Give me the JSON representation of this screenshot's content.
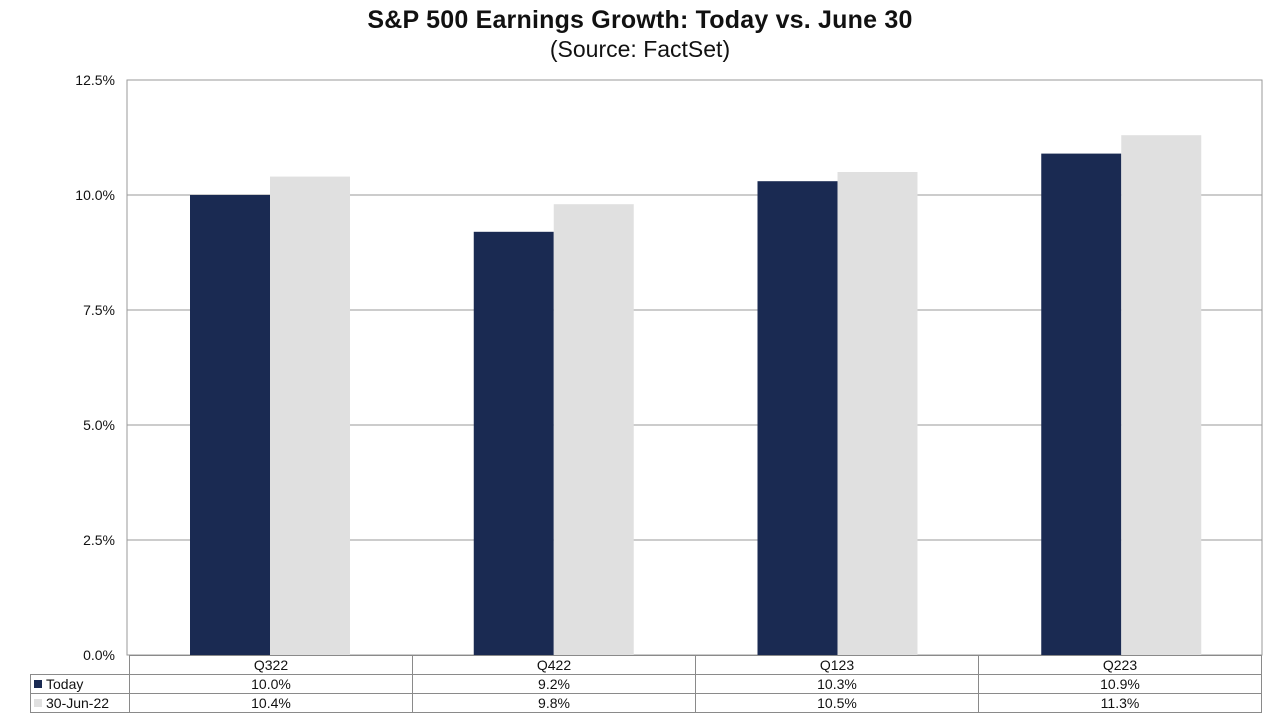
{
  "chart_data": {
    "type": "bar",
    "title": "S&P 500 Earnings Growth: Today vs. June 30",
    "subtitle": "(Source: FactSet)",
    "categories": [
      "Q322",
      "Q422",
      "Q123",
      "Q223"
    ],
    "series": [
      {
        "name": "Today",
        "color": "#1a2a52",
        "values": [
          10.0,
          9.2,
          10.3,
          10.9
        ],
        "labels": [
          "10.0%",
          "9.2%",
          "10.3%",
          "10.9%"
        ]
      },
      {
        "name": "30-Jun-22",
        "color": "#e0e0e0",
        "values": [
          10.4,
          9.8,
          10.5,
          11.3
        ],
        "labels": [
          "10.4%",
          "9.8%",
          "10.5%",
          "11.3%"
        ]
      }
    ],
    "ylim": [
      0,
      12.5
    ],
    "yticks": [
      0,
      2.5,
      5.0,
      7.5,
      10.0,
      12.5
    ],
    "ytick_labels": [
      "0.0%",
      "2.5%",
      "5.0%",
      "7.5%",
      "10.0%",
      "12.5%"
    ],
    "grid": true,
    "legend": "data-table-below"
  }
}
